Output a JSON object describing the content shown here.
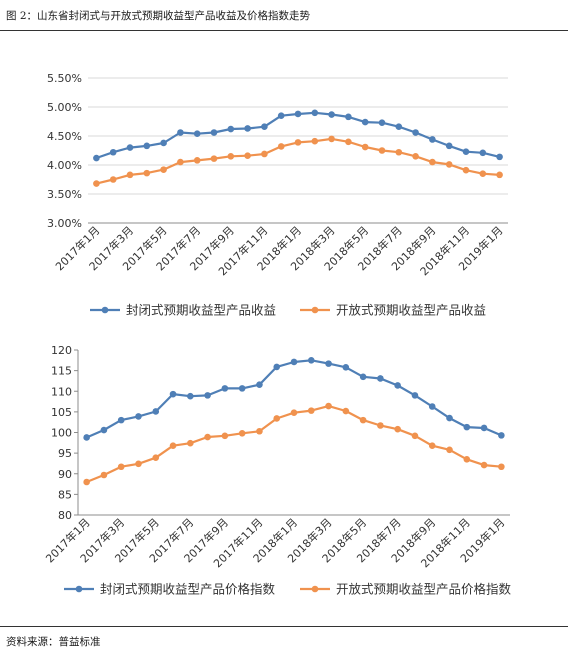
{
  "figure": {
    "title": "图 2：山东省封闭式与开放式预期收益型产品收益及价格指数走势",
    "source": "资料来源：普益标准"
  },
  "chart_data": [
    {
      "type": "line",
      "x": [
        "2017年1月",
        "2017年2月",
        "2017年3月",
        "2017年4月",
        "2017年5月",
        "2017年6月",
        "2017年7月",
        "2017年8月",
        "2017年9月",
        "2017年10月",
        "2017年11月",
        "2017年12月",
        "2018年1月",
        "2018年2月",
        "2018年3月",
        "2018年4月",
        "2018年5月",
        "2018年6月",
        "2018年7月",
        "2018年8月",
        "2018年9月",
        "2018年10月",
        "2018年11月",
        "2018年12月",
        "2019年1月"
      ],
      "x_tick_labels": [
        "2017年1月",
        "2017年3月",
        "2017年5月",
        "2017年7月",
        "2017年9月",
        "2017年11月",
        "2018年1月",
        "2018年3月",
        "2018年5月",
        "2018年7月",
        "2018年9月",
        "2018年11月",
        "2019年1月"
      ],
      "y_tick_labels": [
        "3.00%",
        "3.50%",
        "4.00%",
        "4.50%",
        "5.00%",
        "5.50%"
      ],
      "ylim": [
        3.0,
        5.5
      ],
      "y_step": 0.5,
      "grid": true,
      "legend": "bottom",
      "series": [
        {
          "name": "封闭式预期收益型产品收益",
          "color": "#4f7fb6",
          "values": [
            4.12,
            4.22,
            4.3,
            4.33,
            4.38,
            4.56,
            4.54,
            4.56,
            4.62,
            4.63,
            4.66,
            4.85,
            4.88,
            4.9,
            4.87,
            4.83,
            4.74,
            4.73,
            4.66,
            4.56,
            4.44,
            4.33,
            4.23,
            4.21,
            4.14
          ]
        },
        {
          "name": "开放式预期收益型产品收益",
          "color": "#f0924e",
          "values": [
            3.68,
            3.75,
            3.83,
            3.86,
            3.92,
            4.05,
            4.08,
            4.11,
            4.15,
            4.16,
            4.19,
            4.32,
            4.39,
            4.41,
            4.45,
            4.4,
            4.31,
            4.25,
            4.22,
            4.15,
            4.05,
            4.01,
            3.91,
            3.85,
            3.83
          ]
        }
      ]
    },
    {
      "type": "line",
      "x": [
        "2017年1月",
        "2017年2月",
        "2017年3月",
        "2017年4月",
        "2017年5月",
        "2017年6月",
        "2017年7月",
        "2017年8月",
        "2017年9月",
        "2017年10月",
        "2017年11月",
        "2017年12月",
        "2018年1月",
        "2018年2月",
        "2018年3月",
        "2018年4月",
        "2018年5月",
        "2018年6月",
        "2018年7月",
        "2018年8月",
        "2018年9月",
        "2018年10月",
        "2018年11月",
        "2018年12月",
        "2019年1月"
      ],
      "x_tick_labels": [
        "2017年1月",
        "2017年3月",
        "2017年5月",
        "2017年7月",
        "2017年9月",
        "2017年11月",
        "2018年1月",
        "2018年3月",
        "2018年5月",
        "2018年7月",
        "2018年9月",
        "2018年11月",
        "2019年1月"
      ],
      "y_tick_labels": [
        "80",
        "85",
        "90",
        "95",
        "100",
        "105",
        "110",
        "115",
        "120"
      ],
      "ylim": [
        80,
        120
      ],
      "y_step": 5,
      "grid": false,
      "legend": "bottom",
      "series": [
        {
          "name": "封闭式预期收益型产品价格指数",
          "color": "#4f7fb6",
          "values": [
            98.8,
            100.6,
            103.0,
            103.9,
            105.1,
            109.3,
            108.8,
            109.0,
            110.7,
            110.7,
            111.6,
            115.9,
            117.1,
            117.5,
            116.7,
            115.8,
            113.5,
            113.1,
            111.4,
            109.0,
            106.3,
            103.5,
            101.3,
            101.1,
            99.3
          ]
        },
        {
          "name": "开放式预期收益型产品价格指数",
          "color": "#f0924e",
          "values": [
            88.0,
            89.7,
            91.7,
            92.4,
            93.9,
            96.8,
            97.4,
            98.9,
            99.2,
            99.8,
            100.3,
            103.4,
            104.8,
            105.3,
            106.4,
            105.2,
            103.0,
            101.7,
            100.8,
            99.2,
            96.8,
            95.8,
            93.5,
            92.1,
            91.7
          ]
        }
      ]
    }
  ]
}
